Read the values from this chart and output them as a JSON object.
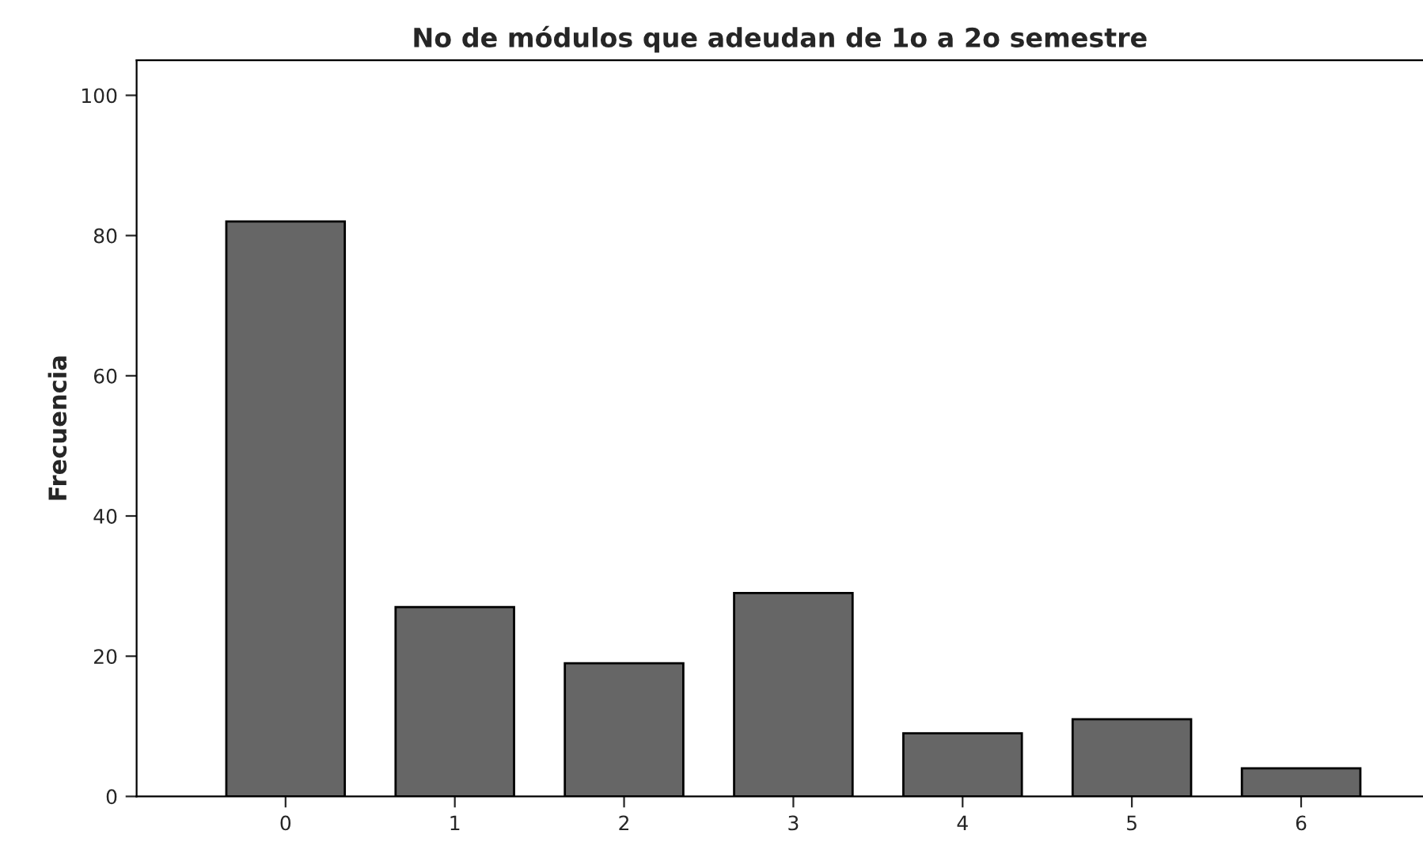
{
  "chart_data": {
    "type": "bar",
    "title": "No de módulos que adeudan de 1o a 2o semestre",
    "ylabel": "Frecuencia",
    "categories": [
      "0",
      "1",
      "2",
      "3",
      "4",
      "5",
      "6"
    ],
    "values": [
      82,
      27,
      19,
      29,
      9,
      11,
      4
    ],
    "color": "#666666",
    "ylim": [
      0,
      105
    ],
    "yticks": [
      0,
      20,
      40,
      60,
      80,
      100
    ],
    "grid": false
  }
}
